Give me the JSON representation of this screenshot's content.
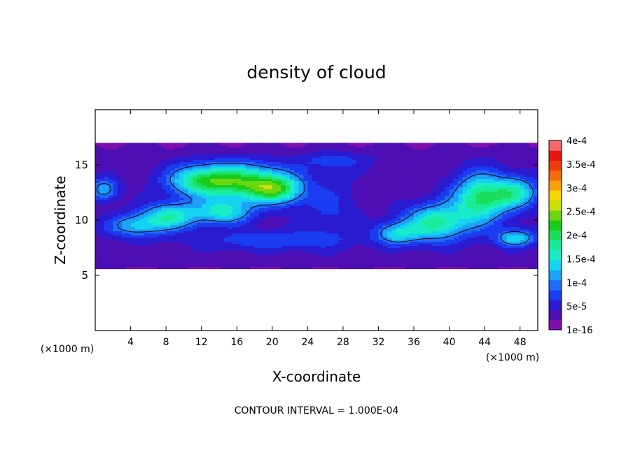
{
  "chart_data": {
    "type": "heatmap",
    "title": "density of cloud",
    "xlabel": "X-coordinate",
    "ylabel": "Z-coordinate",
    "x_unit_left": "(×1000 m)",
    "x_unit_right": "(×1000 m)",
    "xlim": [
      0,
      50
    ],
    "ylim": [
      0,
      20
    ],
    "x_ticks": [
      4,
      8,
      12,
      16,
      20,
      24,
      28,
      32,
      36,
      40,
      44,
      48
    ],
    "y_ticks": [
      5,
      10,
      15
    ],
    "footer": "CONTOUR INTERVAL = 1.000E-04",
    "colorbar": {
      "labels": [
        "1e-16",
        "5e-5",
        "1e-4",
        "1.5e-4",
        "2e-4",
        "2.5e-4",
        "3e-4",
        "3.5e-4",
        "4e-4"
      ],
      "colors": [
        "#7d0faf",
        "#4d0fb4",
        "#2a1ad0",
        "#1b3cf0",
        "#1f6cf5",
        "#1ca2f6",
        "#15d2f0",
        "#18ecc8",
        "#1aeb98",
        "#1bdf5c",
        "#19cc19",
        "#6bd60f",
        "#c9e00b",
        "#f5d508",
        "#f7a10b",
        "#f26c0d",
        "#ee3c0d",
        "#ea1411",
        "#f76768"
      ]
    },
    "field": {
      "base_band_z": [
        5.6,
        17.0
      ],
      "blobs": [
        {
          "x": 12,
          "z": 13.6,
          "sx": 3.8,
          "sz": 1.4,
          "v": 0.000145
        },
        {
          "x": 17,
          "z": 13.5,
          "sx": 4.5,
          "sz": 1.6,
          "v": 0.00015
        },
        {
          "x": 20.5,
          "z": 12.8,
          "sx": 3.0,
          "sz": 1.3,
          "v": 0.00014
        },
        {
          "x": 8.5,
          "z": 10.4,
          "sx": 3.2,
          "sz": 1.2,
          "v": 0.000125
        },
        {
          "x": 14.5,
          "z": 10.8,
          "sx": 3.2,
          "sz": 1.1,
          "v": 0.00012
        },
        {
          "x": 4.5,
          "z": 9.5,
          "sx": 3.2,
          "sz": 1.0,
          "v": 9e-05
        },
        {
          "x": 1.0,
          "z": 12.8,
          "sx": 1.6,
          "sz": 1.0,
          "v": 9e-05
        },
        {
          "x": 26.5,
          "z": 11.0,
          "sx": 3.2,
          "sz": 2.8,
          "v": 3.5e-05
        },
        {
          "x": 38.5,
          "z": 9.8,
          "sx": 3.5,
          "sz": 1.6,
          "v": 0.000145
        },
        {
          "x": 43.5,
          "z": 12.0,
          "sx": 3.0,
          "sz": 2.2,
          "v": 0.00016
        },
        {
          "x": 47.5,
          "z": 12.5,
          "sx": 2.6,
          "sz": 1.4,
          "v": 0.00012
        },
        {
          "x": 47.5,
          "z": 8.4,
          "sx": 2.2,
          "sz": 0.8,
          "v": 0.00011
        },
        {
          "x": 34,
          "z": 8.8,
          "sx": 2.5,
          "sz": 1.0,
          "v": 0.0001
        },
        {
          "x": 20,
          "z": 8.2,
          "sx": 8,
          "sz": 0.9,
          "v": 5e-05
        },
        {
          "x": 27,
          "z": 15.4,
          "sx": 4,
          "sz": 0.9,
          "v": 4e-05
        }
      ]
    }
  }
}
